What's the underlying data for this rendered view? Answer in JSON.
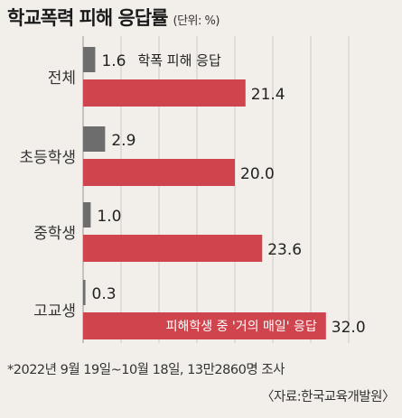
{
  "header": {
    "title": "학교폭력 피해 응답률",
    "unit": "(단위: %)"
  },
  "chart_data": {
    "type": "bar",
    "orientation": "horizontal",
    "categories": [
      "전체",
      "초등학생",
      "중학생",
      "고교생"
    ],
    "series": [
      {
        "name": "학폭 피해 응답",
        "values": [
          1.6,
          2.9,
          1.0,
          0.3
        ],
        "color": "#6d6d6d"
      },
      {
        "name": "피해학생 중 '거의 매일' 응답",
        "values": [
          21.4,
          20.0,
          23.6,
          32.0
        ],
        "color": "#d0454d"
      }
    ],
    "value_labels": [
      [
        "1.6",
        "2.9",
        "1.0",
        "0.3"
      ],
      [
        "21.4",
        "20.0",
        "23.6",
        "32.0"
      ]
    ],
    "xlim": [
      0,
      35
    ],
    "grid": true
  },
  "footnote": "*2022년 9월 19일~10월 18일, 13만2860명 조사",
  "source": "〈자료:한국교육개발원〉"
}
